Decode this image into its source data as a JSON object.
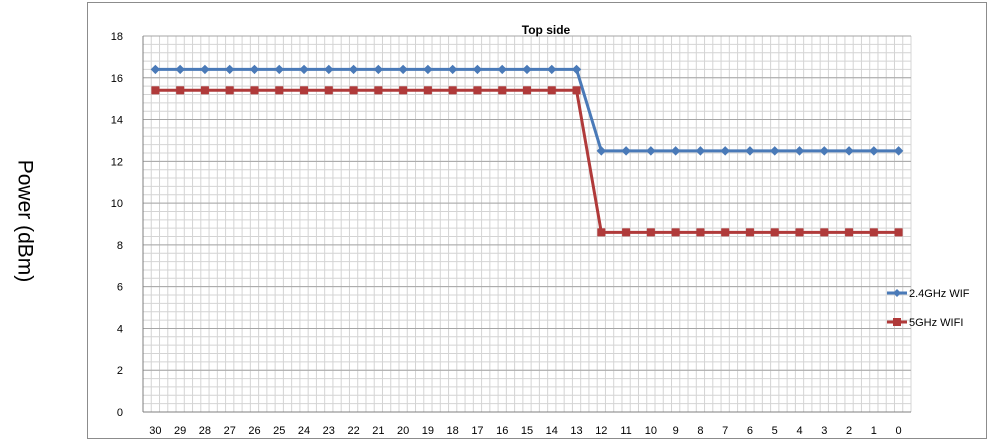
{
  "y_axis_caption": "Power (dBm)",
  "chart_data": {
    "type": "line",
    "title": "Top side",
    "xlabel": "",
    "ylabel": "Power (dBm)",
    "ylim": [
      0,
      18
    ],
    "y_ticks": [
      0,
      2,
      4,
      6,
      8,
      10,
      12,
      14,
      16,
      18
    ],
    "categories": [
      "30",
      "29",
      "28",
      "27",
      "26",
      "25",
      "24",
      "23",
      "22",
      "21",
      "20",
      "19",
      "18",
      "17",
      "16",
      "15",
      "14",
      "13",
      "12",
      "11",
      "10",
      "9",
      "8",
      "7",
      "6",
      "5",
      "4",
      "3",
      "2",
      "1",
      "0"
    ],
    "series": [
      {
        "name": "2.4GHz WIF",
        "color": "#4a7ab8",
        "marker": "diamond",
        "values": [
          16.4,
          16.4,
          16.4,
          16.4,
          16.4,
          16.4,
          16.4,
          16.4,
          16.4,
          16.4,
          16.4,
          16.4,
          16.4,
          16.4,
          16.4,
          16.4,
          16.4,
          16.4,
          12.5,
          12.5,
          12.5,
          12.5,
          12.5,
          12.5,
          12.5,
          12.5,
          12.5,
          12.5,
          12.5,
          12.5,
          12.5
        ]
      },
      {
        "name": "5GHz WIFI",
        "color": "#b03a3a",
        "marker": "square",
        "values": [
          15.4,
          15.4,
          15.4,
          15.4,
          15.4,
          15.4,
          15.4,
          15.4,
          15.4,
          15.4,
          15.4,
          15.4,
          15.4,
          15.4,
          15.4,
          15.4,
          15.4,
          15.4,
          8.6,
          8.6,
          8.6,
          8.6,
          8.6,
          8.6,
          8.6,
          8.6,
          8.6,
          8.6,
          8.6,
          8.6,
          8.6
        ]
      }
    ],
    "grid": true,
    "minor_grid": true,
    "legend_position": "right"
  }
}
